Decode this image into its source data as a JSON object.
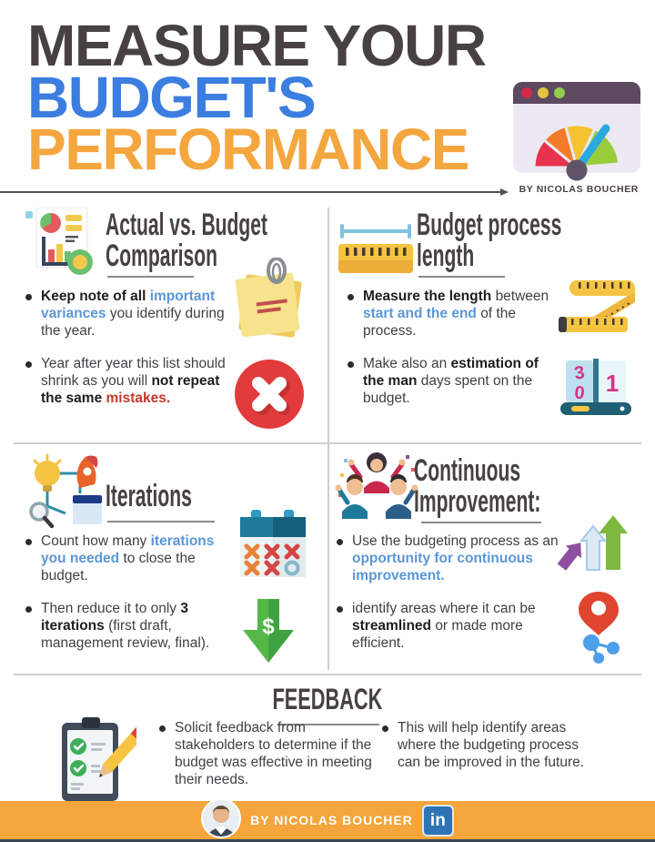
{
  "page": {
    "title_lines": [
      "MEASURE YOUR",
      "BUDGET'S",
      "PERFORMANCE"
    ],
    "byline": "BY NICOLAS BOUCHER",
    "header_icon": "gauge-browser-icon",
    "colors": {
      "title_dark": "#474241",
      "title_blue": "#3C7EE0",
      "title_orange": "#F4A63F",
      "emphasis_blue_text": "#5B97D6",
      "emphasis_red_text": "#C0392B",
      "footer_orange": "#F4A53C",
      "linkedin_blue": "#2E74B5"
    }
  },
  "quadrants": [
    {
      "id": "actual-vs-budget-comparison",
      "icon": "report-chart-icon",
      "title_lines": [
        "Actual vs. Budget",
        "Comparison"
      ],
      "bullets": [
        {
          "segments": [
            {
              "text": "Keep note of all ",
              "style": "bold"
            },
            {
              "text": "important variances",
              "style": "blue"
            },
            {
              "text": " you identify during the year.",
              "style": "normal"
            }
          ]
        },
        {
          "segments": [
            {
              "text": "Year after year this list should shrink as you will ",
              "style": "normal"
            },
            {
              "text": "not repeat the same ",
              "style": "bold"
            },
            {
              "text": "mistakes.",
              "style": "red"
            }
          ]
        }
      ],
      "side_icons": [
        "sticky-note-paperclip-icon",
        "error-cross-icon"
      ]
    },
    {
      "id": "budget-process-length",
      "icon": "ruler-icon",
      "title_lines": [
        "Budget process",
        "length"
      ],
      "bullets": [
        {
          "segments": [
            {
              "text": "Measure the length ",
              "style": "bold"
            },
            {
              "text": "between ",
              "style": "normal"
            },
            {
              "text": "start and the end ",
              "style": "blue"
            },
            {
              "text": "of the process.",
              "style": "normal"
            }
          ]
        },
        {
          "segments": [
            {
              "text": "Make also an ",
              "style": "normal"
            },
            {
              "text": "estimation of the man ",
              "style": "bold"
            },
            {
              "text": "days spent on the budget.",
              "style": "normal"
            }
          ]
        }
      ],
      "side_icons": [
        "tape-measure-icon",
        "counter-icon"
      ]
    },
    {
      "id": "iterations",
      "icon": "idea-rocket-icon",
      "title_lines": [
        "Iterations"
      ],
      "bullets": [
        {
          "segments": [
            {
              "text": "Count how many ",
              "style": "normal"
            },
            {
              "text": "iterations you needed ",
              "style": "blue"
            },
            {
              "text": "to close the budget.",
              "style": "normal"
            }
          ]
        },
        {
          "segments": [
            {
              "text": "Then reduce it to only ",
              "style": "normal"
            },
            {
              "text": "3 iterations ",
              "style": "bold"
            },
            {
              "text": "(first draft, management review, final).",
              "style": "normal"
            }
          ]
        }
      ],
      "side_icons": [
        "calendar-x-icon",
        "down-arrow-dollar-icon"
      ]
    },
    {
      "id": "continuous-improvement",
      "icon": "team-celebration-icon",
      "title_lines": [
        "Continuous",
        "Improvement:"
      ],
      "bullets": [
        {
          "segments": [
            {
              "text": "Use the budgeting process as an ",
              "style": "normal"
            },
            {
              "text": "opportunity for continuous improvement.",
              "style": "blue"
            }
          ]
        },
        {
          "segments": [
            {
              "text": " identify areas where it can be ",
              "style": "normal"
            },
            {
              "text": "streamlined ",
              "style": "bold"
            },
            {
              "text": "or made more efficient.",
              "style": "normal"
            }
          ]
        }
      ],
      "side_icons": [
        "growth-arrows-icon",
        "pin-network-icon"
      ]
    }
  ],
  "feedback": {
    "title": "FEEDBACK",
    "icon": "clipboard-check-icon",
    "bullets": [
      {
        "segments": [
          {
            "text": "Solicit feedback from stakeholders to determine if the budget was effective in meeting their needs.",
            "style": "normal"
          }
        ]
      },
      {
        "segments": [
          {
            "text": "This will help identify areas where the budgeting process can be improved in the future.",
            "style": "normal"
          }
        ]
      }
    ]
  },
  "footer": {
    "byline": "BY NICOLAS BOUCHER",
    "linkedin_label": "in",
    "icons": [
      "avatar",
      "linkedin-icon"
    ]
  }
}
